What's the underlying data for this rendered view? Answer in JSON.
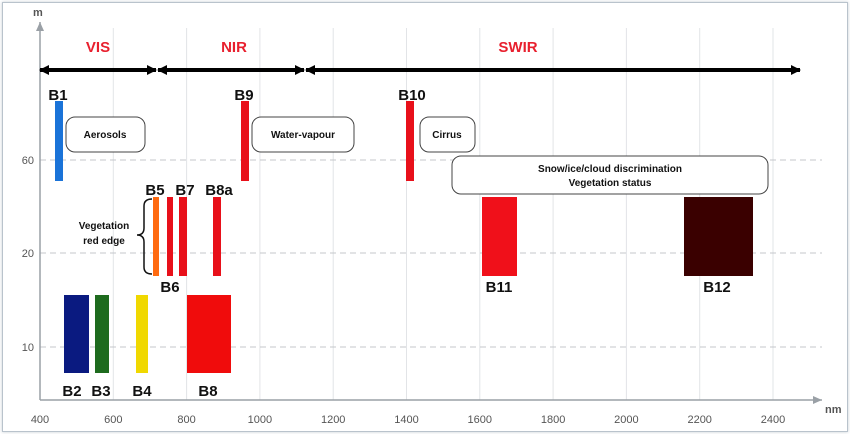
{
  "chart_data": {
    "type": "bar",
    "x_axis": {
      "unit": "nm",
      "ticks": [
        400,
        600,
        800,
        1000,
        1200,
        1400,
        1600,
        1800,
        2000,
        2200,
        2400
      ]
    },
    "y_axis": {
      "unit": "m",
      "ticks": [
        10,
        20,
        60
      ]
    },
    "regions": [
      {
        "name": "VIS",
        "from": 400,
        "to": 760
      },
      {
        "name": "NIR",
        "from": 760,
        "to": 1180
      },
      {
        "name": "SWIR",
        "from": 1180,
        "to": 2440
      }
    ],
    "bands": [
      {
        "name": "B1",
        "center": 443,
        "width": 20,
        "resolution": 60,
        "color": "#1a73d8"
      },
      {
        "name": "B2",
        "center": 490,
        "width": 65,
        "resolution": 10,
        "color": "#0a1a80"
      },
      {
        "name": "B3",
        "center": 560,
        "width": 35,
        "resolution": 10,
        "color": "#1e6b1e"
      },
      {
        "name": "B4",
        "center": 665,
        "width": 30,
        "resolution": 10,
        "color": "#f0d800"
      },
      {
        "name": "B5",
        "center": 705,
        "width": 15,
        "resolution": 20,
        "color": "#ff6a10"
      },
      {
        "name": "B6",
        "center": 740,
        "width": 15,
        "resolution": 20,
        "color": "#e8101a"
      },
      {
        "name": "B7",
        "center": 783,
        "width": 20,
        "resolution": 20,
        "color": "#e8101a"
      },
      {
        "name": "B8",
        "center": 842,
        "width": 115,
        "resolution": 10,
        "color": "#f00c0c"
      },
      {
        "name": "B8a",
        "center": 865,
        "width": 20,
        "resolution": 20,
        "color": "#e8101a"
      },
      {
        "name": "B9",
        "center": 945,
        "width": 20,
        "resolution": 60,
        "color": "#e8101a"
      },
      {
        "name": "B10",
        "center": 1375,
        "width": 20,
        "resolution": 60,
        "color": "#e8101a"
      },
      {
        "name": "B11",
        "center": 1610,
        "width": 90,
        "resolution": 20,
        "color": "#f0101a"
      },
      {
        "name": "B12",
        "center": 2190,
        "width": 180,
        "resolution": 20,
        "color": "#3a0000"
      }
    ],
    "annotations": [
      {
        "text": "Aerosols"
      },
      {
        "text": "Water-vapour"
      },
      {
        "text": "Cirrus"
      },
      {
        "lines": [
          "Snow/ice/cloud discrimination",
          "Vegetation status"
        ]
      },
      {
        "lines": [
          "Vegetation",
          "red edge"
        ]
      }
    ]
  }
}
